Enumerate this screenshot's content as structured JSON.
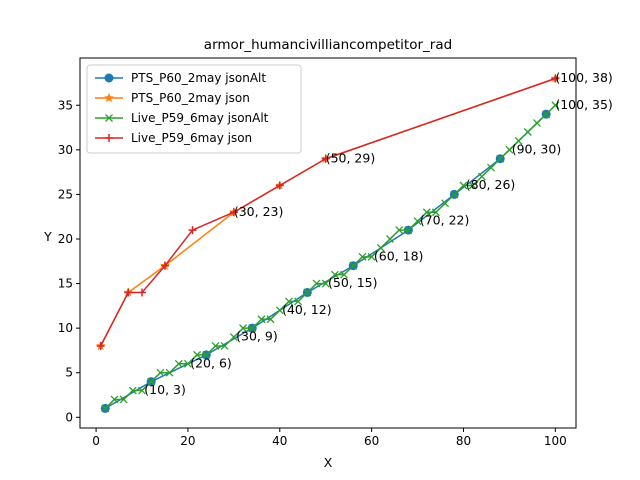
{
  "chart_data": {
    "type": "line",
    "title": "armor_humancivilliancompetitor_rad",
    "xlabel": "X",
    "ylabel": "Y",
    "xlim": [
      -3.5,
      104.5
    ],
    "ylim": [
      -1.2,
      40.3
    ],
    "xticks": [
      0,
      20,
      40,
      60,
      80,
      100
    ],
    "yticks": [
      0,
      5,
      10,
      15,
      20,
      25,
      30,
      35
    ],
    "grid": false,
    "legend_position": "upper-left",
    "series": [
      {
        "name": "PTS_P60_2may jsonAlt",
        "color": "#1f77b4",
        "marker": "circle",
        "x": [
          2,
          12,
          24,
          34,
          46,
          56,
          68,
          78,
          88,
          98
        ],
        "y": [
          1,
          4,
          7,
          10,
          14,
          17,
          21,
          25,
          29,
          34
        ]
      },
      {
        "name": "PTS_P60_2may json",
        "color": "#ff7f0e",
        "marker": "star",
        "x": [
          1,
          7,
          15,
          30,
          40,
          50,
          100
        ],
        "y": [
          8,
          14,
          17,
          23,
          26,
          29,
          38
        ]
      },
      {
        "name": "Live_P59_6may jsonAlt",
        "color": "#2ca02c",
        "marker": "x",
        "x": [
          2,
          4,
          6,
          8,
          10,
          12,
          14,
          16,
          18,
          20,
          22,
          24,
          26,
          28,
          30,
          32,
          34,
          36,
          38,
          40,
          42,
          44,
          46,
          48,
          50,
          52,
          54,
          56,
          58,
          60,
          62,
          64,
          66,
          68,
          70,
          72,
          74,
          76,
          78,
          80,
          82,
          84,
          86,
          88,
          90,
          92,
          94,
          96,
          98,
          100
        ],
        "y": [
          1,
          2,
          2,
          3,
          3,
          4,
          5,
          5,
          6,
          6,
          7,
          7,
          8,
          8,
          9,
          10,
          10,
          11,
          11,
          12,
          13,
          13,
          14,
          15,
          15,
          16,
          16,
          17,
          18,
          18,
          19,
          20,
          21,
          21,
          22,
          23,
          23,
          24,
          25,
          26,
          26,
          27,
          28,
          29,
          30,
          31,
          32,
          33,
          34,
          35
        ]
      },
      {
        "name": "Live_P59_6may json",
        "color": "#d62728",
        "marker": "plus",
        "x": [
          1,
          7,
          10,
          15,
          21,
          30,
          40,
          50,
          100
        ],
        "y": [
          8,
          14,
          14,
          17,
          21,
          23,
          26,
          29,
          38
        ]
      }
    ],
    "annotations": [
      {
        "text": "(10, 3)",
        "x": 10.5,
        "y": 2.6
      },
      {
        "text": "(20, 6)",
        "x": 20.5,
        "y": 5.6
      },
      {
        "text": "(30, 9)",
        "x": 30.5,
        "y": 8.6
      },
      {
        "text": "(40, 12)",
        "x": 40.5,
        "y": 11.6
      },
      {
        "text": "(50, 15)",
        "x": 50.5,
        "y": 14.6
      },
      {
        "text": "(60, 18)",
        "x": 60.5,
        "y": 17.6
      },
      {
        "text": "(70, 22)",
        "x": 70.5,
        "y": 21.6
      },
      {
        "text": "(80, 26)",
        "x": 80.5,
        "y": 25.6
      },
      {
        "text": "(90, 30)",
        "x": 90.5,
        "y": 29.6
      },
      {
        "text": "(100, 35)",
        "x": 100.0,
        "y": 34.6
      },
      {
        "text": "(30, 23)",
        "x": 30.0,
        "y": 22.6
      },
      {
        "text": "(50, 29)",
        "x": 50.0,
        "y": 28.6
      },
      {
        "text": "(100, 38)",
        "x": 100.0,
        "y": 37.6
      }
    ]
  }
}
